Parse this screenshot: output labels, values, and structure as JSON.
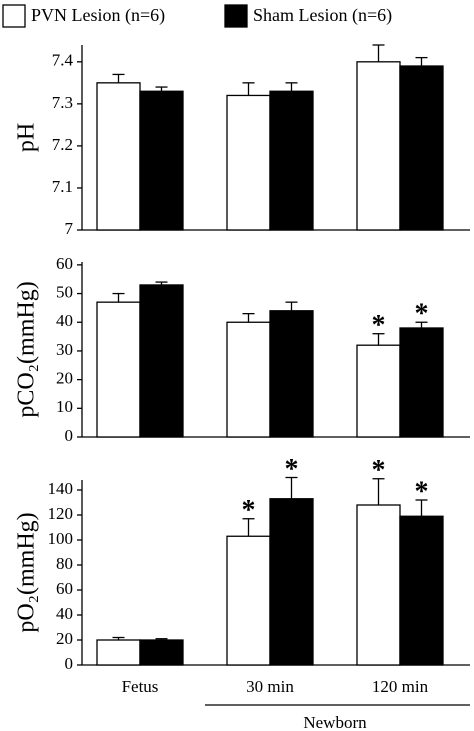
{
  "chart_data": [
    {
      "type": "bar",
      "ylabel": "pH",
      "ylim": [
        7,
        7.44
      ],
      "yticks": [
        7,
        7.1,
        7.2,
        7.3,
        7.4
      ],
      "series": [
        {
          "name": "PVN Lesion (n=6)",
          "color": "#ffffff",
          "values": [
            7.35,
            7.32,
            7.4
          ],
          "errors": [
            0.02,
            0.03,
            0.04
          ],
          "markers": [
            null,
            null,
            null
          ]
        },
        {
          "name": "Sham Lesion (n=6)",
          "color": "#000000",
          "values": [
            7.33,
            7.33,
            7.39
          ],
          "errors": [
            0.01,
            0.02,
            0.02
          ],
          "markers": [
            null,
            null,
            null
          ]
        }
      ]
    },
    {
      "type": "bar",
      "ylabel": "pCO₂(mmHg)",
      "ylim": [
        0,
        61
      ],
      "yticks": [
        0,
        10,
        20,
        30,
        40,
        50,
        60
      ],
      "series": [
        {
          "color": "#ffffff",
          "values": [
            47,
            40,
            32
          ],
          "errors": [
            3,
            3,
            4
          ],
          "markers": [
            null,
            null,
            "*"
          ]
        },
        {
          "color": "#000000",
          "values": [
            53,
            44,
            38
          ],
          "errors": [
            1,
            3,
            2
          ],
          "markers": [
            null,
            null,
            "*"
          ]
        }
      ]
    },
    {
      "type": "bar",
      "ylabel": "pO₂(mmHg)",
      "ylim": [
        0,
        148
      ],
      "yticks": [
        0,
        20,
        40,
        60,
        80,
        100,
        120,
        140
      ],
      "categories": [
        "Fetus",
        "30 min",
        "120 min"
      ],
      "group_label": "Newborn",
      "series": [
        {
          "color": "#ffffff",
          "values": [
            20,
            103,
            128
          ],
          "errors": [
            2,
            14,
            21
          ],
          "markers": [
            null,
            "*",
            "*"
          ]
        },
        {
          "color": "#000000",
          "values": [
            20,
            133,
            119
          ],
          "errors": [
            1,
            17,
            13
          ],
          "markers": [
            null,
            "*",
            "*"
          ]
        }
      ]
    }
  ]
}
